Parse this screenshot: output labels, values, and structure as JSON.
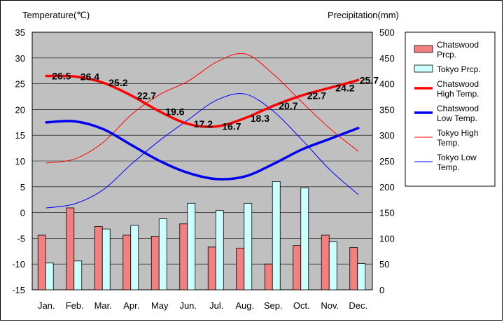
{
  "chart_data": {
    "type": "bar+line",
    "left_axis_title": "Temperature(℃)",
    "right_axis_title": "Precipitation(mm)",
    "categories": [
      "Jan.",
      "Feb.",
      "Mar.",
      "Apr.",
      "May",
      "Jun.",
      "Jul.",
      "Aug.",
      "Sep.",
      "Oct.",
      "Nov.",
      "Dec."
    ],
    "left_ticks": [
      "35",
      "30",
      "25",
      "20",
      "15",
      "10",
      "5",
      "0",
      "-5",
      "-10",
      "-15"
    ],
    "right_ticks": [
      "500",
      "450",
      "400",
      "350",
      "300",
      "250",
      "200",
      "150",
      "100",
      "50",
      "0"
    ],
    "temperature_ylim": [
      -15,
      35
    ],
    "precipitation_ylim": [
      0,
      500
    ],
    "bars": [
      {
        "name": "Chatswood Prcp.",
        "legend": [
          "Chatswood",
          "Prcp."
        ],
        "color": "#f28080",
        "values": [
          106,
          159,
          123,
          106,
          104,
          128,
          83,
          81,
          50,
          86,
          106,
          82
        ]
      },
      {
        "name": "Tokyo Prcp.",
        "legend": [
          "Tokyo Prcp."
        ],
        "color": "#ccffff",
        "values": [
          52,
          56,
          118,
          125,
          138,
          168,
          154,
          168,
          210,
          198,
          93,
          51
        ]
      }
    ],
    "lines": [
      {
        "name": "Chatswood High Temp.",
        "legend": [
          "Chatswood",
          "High Temp."
        ],
        "color": "#ff0000",
        "width": 3.5,
        "values": [
          26.5,
          26.4,
          25.2,
          22.7,
          19.6,
          17.2,
          16.7,
          18.3,
          20.7,
          22.7,
          24.2,
          25.7
        ],
        "labels": [
          "26.5",
          "26.4",
          "25.2",
          "22.7",
          "19.6",
          "17.2",
          "16.7",
          "18.3",
          "20.7",
          "22.7",
          "24.2",
          "25.7"
        ]
      },
      {
        "name": "Chatswood Low Temp.",
        "legend": [
          "Chatswood",
          "Low Temp."
        ],
        "color": "#0000ee",
        "width": 3.5,
        "values": [
          17.5,
          17.7,
          16.2,
          13.1,
          10.0,
          7.7,
          6.5,
          7.0,
          9.4,
          12.2,
          14.3,
          16.4
        ]
      },
      {
        "name": "Tokyo High Temp.",
        "legend": [
          "Tokyo High",
          "Temp."
        ],
        "color": "#ff0000",
        "width": 1,
        "values": [
          9.6,
          10.4,
          13.6,
          19.0,
          22.9,
          25.5,
          29.2,
          30.8,
          26.9,
          21.5,
          16.3,
          11.9
        ]
      },
      {
        "name": "Tokyo Low Temp.",
        "legend": [
          "Tokyo Low",
          "Temp."
        ],
        "color": "#0000ff",
        "width": 1,
        "values": [
          0.9,
          1.7,
          4.4,
          9.4,
          14.0,
          18.0,
          21.8,
          23.0,
          19.7,
          14.2,
          8.3,
          3.5
        ]
      }
    ]
  }
}
